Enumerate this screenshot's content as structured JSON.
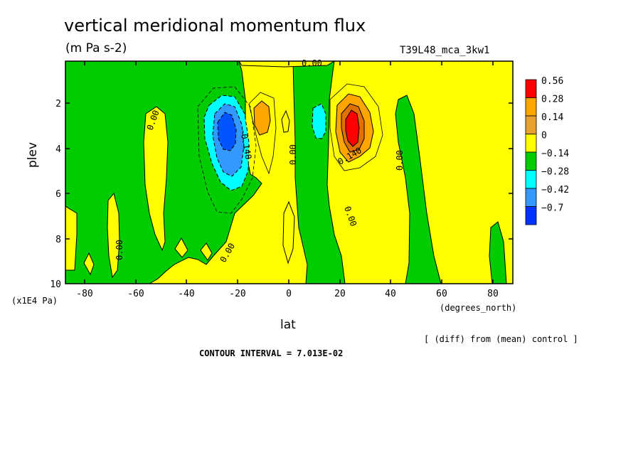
{
  "chart_data": {
    "type": "heatmap",
    "title": "vertical meridional momentum flux",
    "subtitle": "(m Pa s-2)",
    "run_name": "T39L48_mca_3kw1",
    "xlabel": "lat",
    "x_units": "(degrees_north)",
    "ylabel": "plev",
    "y_units": "(x1E4 Pa)",
    "x_ticks": [
      "-80",
      "-60",
      "-40",
      "-20",
      "0",
      "20",
      "40",
      "60",
      "80"
    ],
    "y_ticks": [
      "2",
      "4",
      "6",
      "8",
      "10"
    ],
    "xlim": [
      -87,
      87
    ],
    "ylim": [
      10,
      0.1
    ],
    "colorbar": {
      "labels": [
        "0.56",
        "0.28",
        "0.14",
        "0",
        "−0.14",
        "−0.28",
        "−0.42",
        "−0.7"
      ],
      "colors": [
        "#ff0000",
        "#ffa500",
        "#e8a12d",
        "#ffff00",
        "#00cc00",
        "#00ffff",
        "#3399ff",
        "#0033ff"
      ]
    },
    "contour_labels": [
      "0.00",
      "0.00",
      "0.00",
      "0.00",
      "0.00",
      "0.00",
      "0.00",
      "-0.140",
      "0.140"
    ],
    "diff_note": "[ (diff) from (mean) control ]",
    "contour_interval": "CONTOUR INTERVAL = 7.013E-02"
  }
}
